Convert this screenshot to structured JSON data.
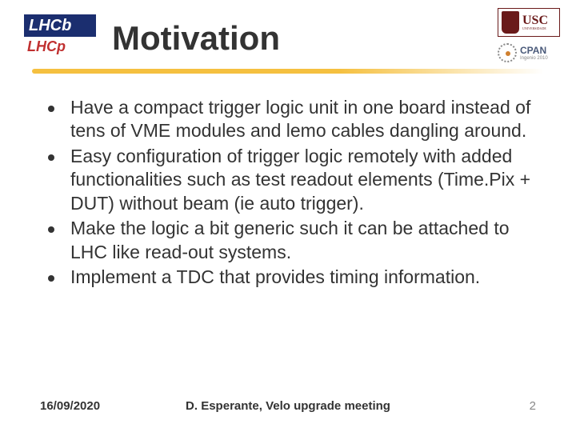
{
  "header": {
    "logo_left_top": "LHCb",
    "logo_left_bottom": "LHCp",
    "title": "Motivation",
    "usc_label": "USC",
    "cpan_label": "CPAN",
    "cpan_sub": "Ingenio 2010"
  },
  "bullets": [
    "Have a compact trigger logic unit in one board instead of tens of VME modules and lemo cables dangling around.",
    "Easy configuration of trigger logic remotely with added functionalities such as test readout elements (Time.Pix + DUT) without beam (ie auto trigger).",
    "Make the logic a bit generic such it can be attached to LHC like read-out systems.",
    "Implement a TDC that provides timing information."
  ],
  "footer": {
    "date": "16/09/2020",
    "author": "D. Esperante, Velo upgrade meeting",
    "page": "2"
  },
  "colors": {
    "accent_yellow": "#f5c040",
    "text": "#333333",
    "usc": "#6a1a1a",
    "cpan": "#4a5a7a"
  }
}
